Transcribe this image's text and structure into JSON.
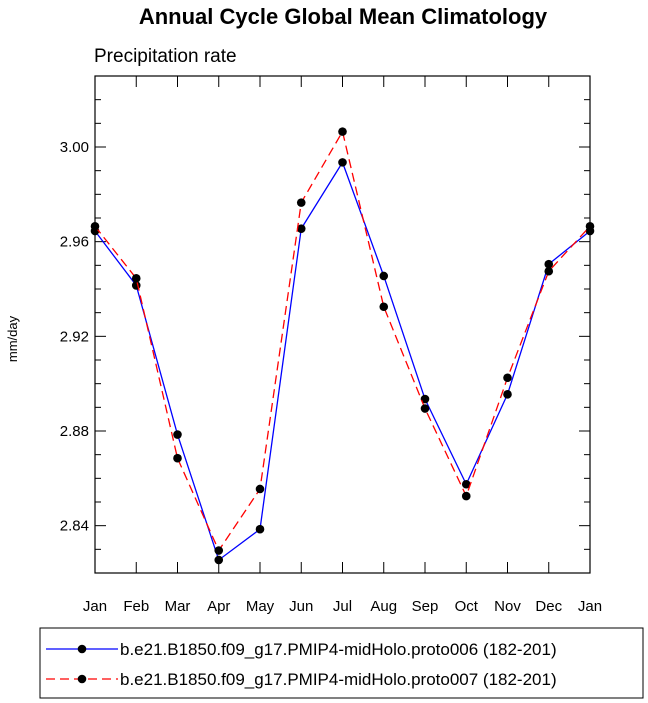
{
  "chart_data": {
    "type": "line",
    "title": "Annual Cycle Global Mean Climatology",
    "subtitle": "Precipitation rate",
    "xlabel": "",
    "ylabel": "mm/day",
    "categories": [
      "Jan",
      "Feb",
      "Mar",
      "Apr",
      "May",
      "Jun",
      "Jul",
      "Aug",
      "Sep",
      "Oct",
      "Nov",
      "Dec",
      "Jan"
    ],
    "ylim": [
      2.82,
      3.03
    ],
    "yticks": [
      "2.84",
      "2.88",
      "2.92",
      "2.96",
      "3.00"
    ],
    "grid": false,
    "legend_position": "bottom",
    "series": [
      {
        "name": "b.e21.B1850.f09_g17.PMIP4-midHolo.proto006 (182-201)",
        "color": "#0000ff",
        "dash": "solid",
        "values": [
          2.9645,
          2.9415,
          2.8785,
          2.8255,
          2.8385,
          2.9655,
          2.9935,
          2.9455,
          2.8935,
          2.8575,
          2.8955,
          2.9505,
          2.9645
        ]
      },
      {
        "name": "b.e21.B1850.f09_g17.PMIP4-midHolo.proto007 (182-201)",
        "color": "#ff0000",
        "dash": "dashed",
        "values": [
          2.9665,
          2.9445,
          2.8685,
          2.8295,
          2.8555,
          2.9765,
          3.0065,
          2.9325,
          2.8895,
          2.8525,
          2.9025,
          2.9475,
          2.9665
        ]
      }
    ]
  }
}
